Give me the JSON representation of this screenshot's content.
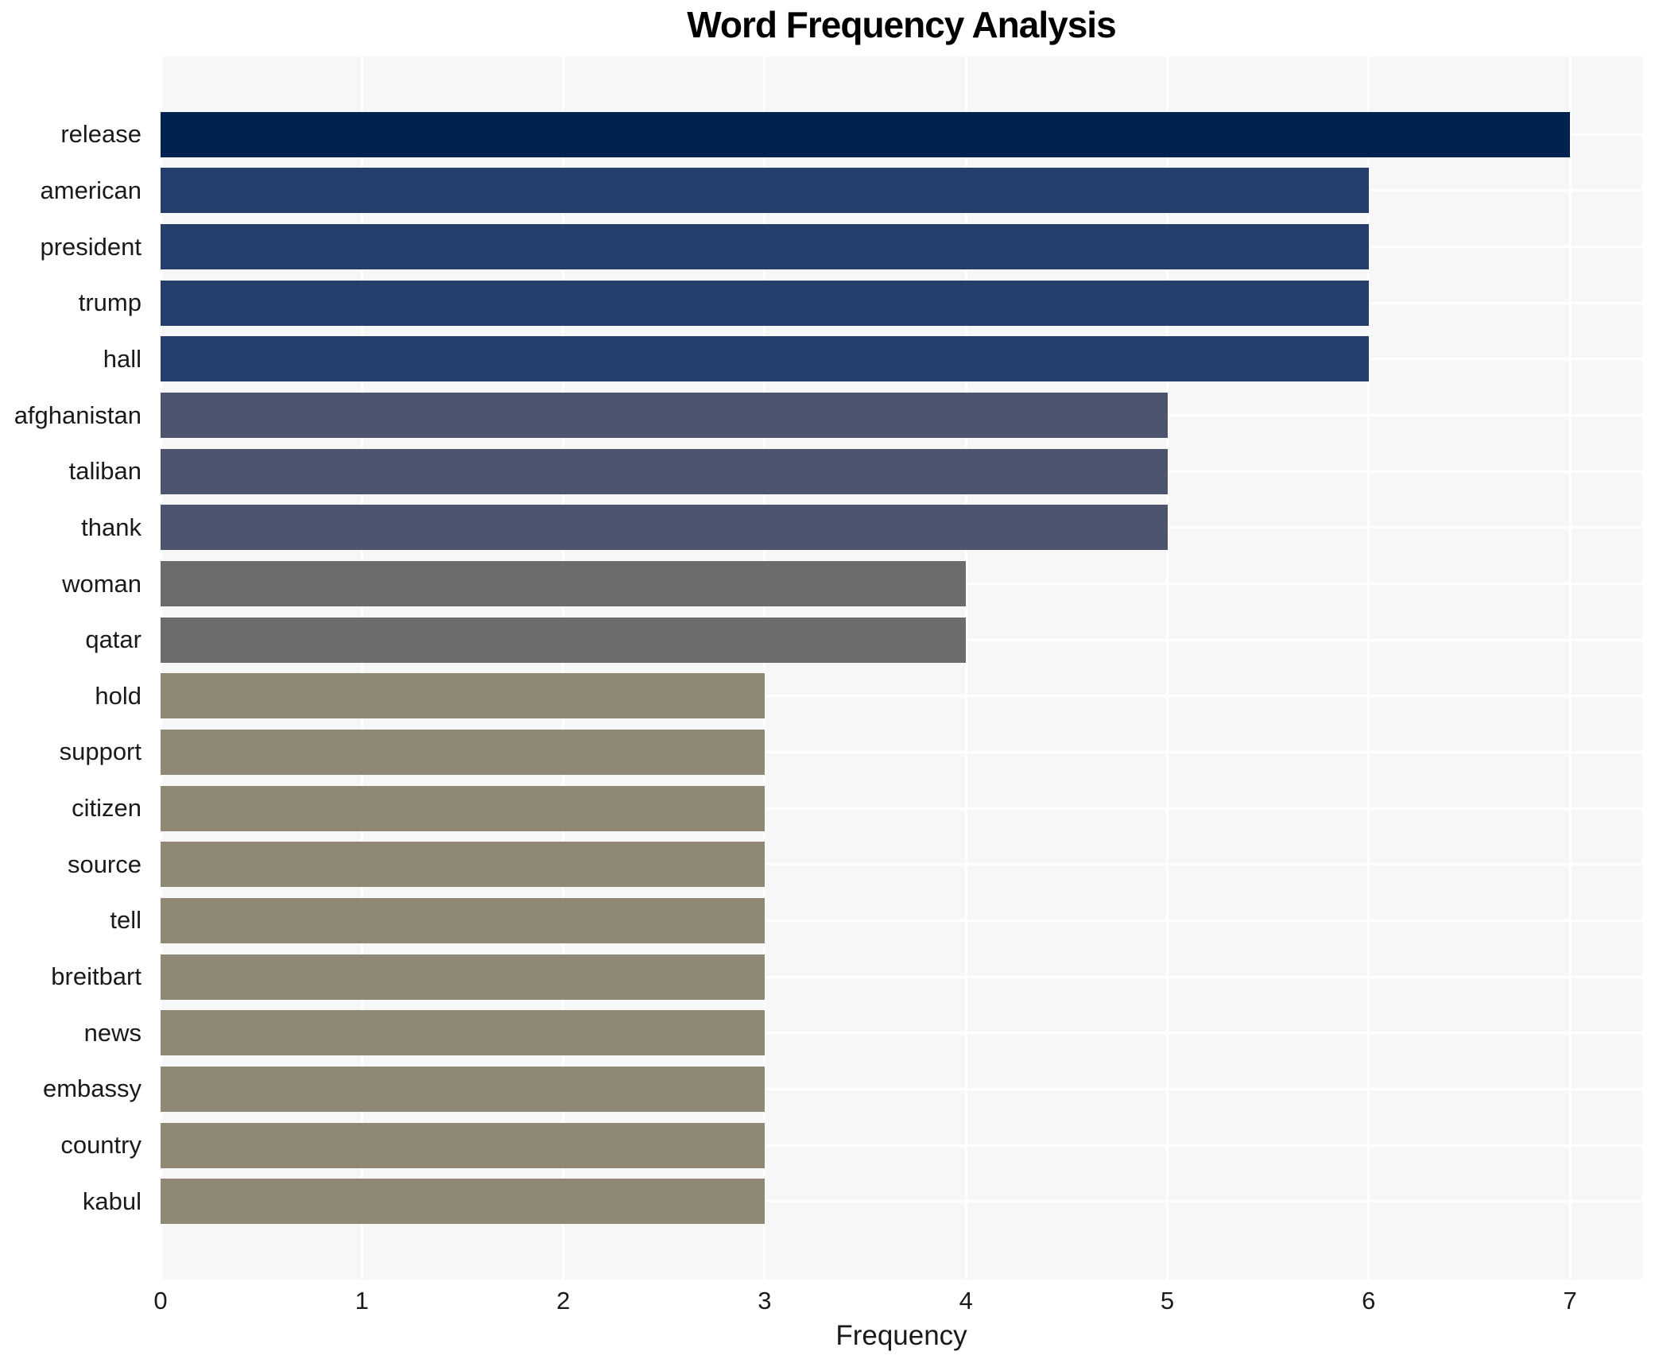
{
  "chart_data": {
    "type": "bar",
    "orientation": "horizontal",
    "title": "Word Frequency Analysis",
    "xlabel": "Frequency",
    "ylabel": "",
    "xlim": [
      0,
      7.36
    ],
    "x_ticks": [
      0,
      1,
      2,
      3,
      4,
      5,
      6,
      7
    ],
    "grid": true,
    "legend": "none",
    "plot_bg_color": "#f7f7f7",
    "grid_color": "#ffffff",
    "text_color": "#1a1a1a",
    "categories": [
      "release",
      "american",
      "president",
      "trump",
      "hall",
      "afghanistan",
      "taliban",
      "thank",
      "woman",
      "qatar",
      "hold",
      "support",
      "citizen",
      "source",
      "tell",
      "breitbart",
      "news",
      "embassy",
      "country",
      "kabul"
    ],
    "values": [
      7,
      6,
      6,
      6,
      6,
      5,
      5,
      5,
      4,
      4,
      3,
      3,
      3,
      3,
      3,
      3,
      3,
      3,
      3,
      3
    ],
    "bar_colors": [
      "#00224e",
      "#253e6b",
      "#253e6b",
      "#253e6b",
      "#253e6b",
      "#4c546e",
      "#4c546e",
      "#4c546e",
      "#6b6c6e",
      "#6b6c6e",
      "#8e8875",
      "#8e8875",
      "#8e8875",
      "#8e8875",
      "#8e8875",
      "#8e8875",
      "#8e8875",
      "#8e8875",
      "#8e8875",
      "#8e8875"
    ]
  }
}
